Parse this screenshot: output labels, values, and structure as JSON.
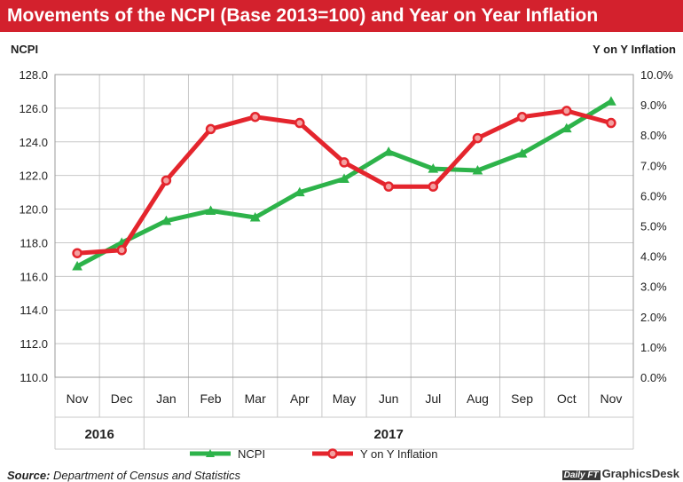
{
  "header": {
    "title": "Movements of the NCPI (Base 2013=100) and Year on Year Inflation"
  },
  "footer": {
    "source_label": "Source:",
    "source_text": "Department of Census and Statistics",
    "logo_mark": "Daily FT",
    "logo_text": "GraphicsDesk"
  },
  "colors": {
    "ncpi": "#2db34a",
    "inflation": "#e4252d",
    "title_bg": "#d3212d",
    "grid": "#c8c8c8"
  },
  "chart_data": {
    "type": "line",
    "left_axis_title": "NCPI",
    "right_axis_title": "Y on Y Inflation",
    "categories": [
      "Nov",
      "Dec",
      "Jan",
      "Feb",
      "Mar",
      "Apr",
      "May",
      "Jun",
      "Jul",
      "Aug",
      "Sep",
      "Oct",
      "Nov"
    ],
    "year_groups": [
      {
        "label": "2016",
        "count": 2
      },
      {
        "label": "2017",
        "count": 11
      }
    ],
    "y_left": {
      "min": 110,
      "max": 128,
      "step": 2,
      "ticks": [
        "110.0",
        "112.0",
        "114.0",
        "116.0",
        "118.0",
        "120.0",
        "122.0",
        "124.0",
        "126.0",
        "128.0"
      ]
    },
    "y_right": {
      "min": 0,
      "max": 10,
      "step": 1,
      "ticks": [
        "0.0%",
        "1.0%",
        "2.0%",
        "3.0%",
        "4.0%",
        "5.0%",
        "6.0%",
        "7.0%",
        "8.0%",
        "9.0%",
        "10.0%"
      ]
    },
    "grid": true,
    "legend_position": "bottom",
    "series": [
      {
        "name": "NCPI",
        "axis": "left",
        "marker": "triangle",
        "values": [
          116.6,
          118.0,
          119.3,
          119.9,
          119.5,
          121.0,
          121.8,
          123.4,
          122.4,
          122.3,
          123.3,
          124.8,
          126.4
        ]
      },
      {
        "name": "Y on Y Inflation",
        "axis": "right",
        "marker": "circle",
        "values": [
          4.1,
          4.2,
          6.5,
          8.2,
          8.6,
          8.4,
          7.1,
          6.3,
          6.3,
          7.9,
          8.6,
          8.8,
          8.4
        ]
      }
    ]
  }
}
